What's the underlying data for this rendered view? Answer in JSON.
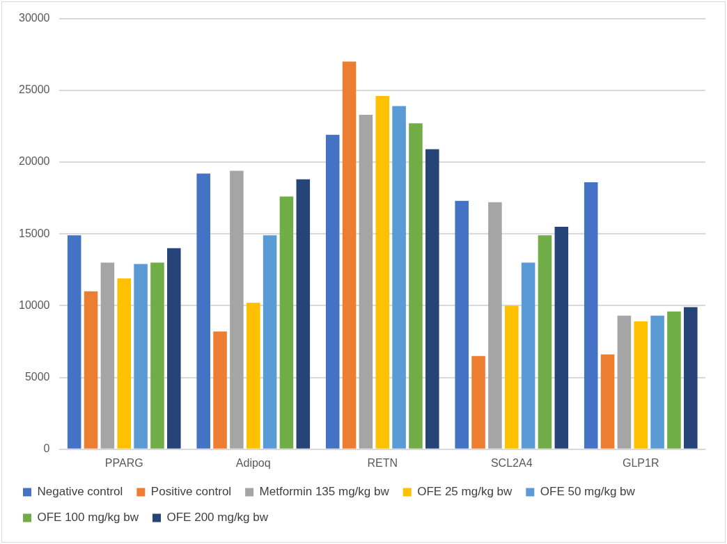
{
  "chart_data": {
    "type": "bar",
    "categories": [
      "PPARG",
      "Adipoq",
      "RETN",
      "SCL2A4",
      "GLP1R"
    ],
    "series": [
      {
        "name": "Negative control",
        "color": "#4472c4",
        "values": [
          14900,
          19200,
          21900,
          17300,
          18600
        ]
      },
      {
        "name": "Positive control",
        "color": "#ed7d31",
        "values": [
          11000,
          8200,
          27000,
          6500,
          6600
        ]
      },
      {
        "name": "Metformin 135 mg/kg bw",
        "color": "#a5a5a5",
        "values": [
          13000,
          19400,
          23300,
          17200,
          9300
        ]
      },
      {
        "name": "OFE 25 mg/kg bw",
        "color": "#ffc000",
        "values": [
          11900,
          10200,
          24600,
          10000,
          8900
        ]
      },
      {
        "name": "OFE 50 mg/kg bw",
        "color": "#5b9bd5",
        "values": [
          12900,
          14900,
          23900,
          13000,
          9300
        ]
      },
      {
        "name": "OFE 100 mg/kg bw",
        "color": "#70ad47",
        "values": [
          13000,
          17600,
          22700,
          14900,
          9600
        ]
      },
      {
        "name": "OFE 200 mg/kg bw",
        "color": "#264478",
        "values": [
          14000,
          18800,
          20900,
          15500,
          9900
        ]
      }
    ],
    "ylim": [
      0,
      30000
    ],
    "yticks": [
      0,
      5000,
      10000,
      15000,
      20000,
      25000,
      30000
    ],
    "grid": "y",
    "legend": "bottom"
  }
}
